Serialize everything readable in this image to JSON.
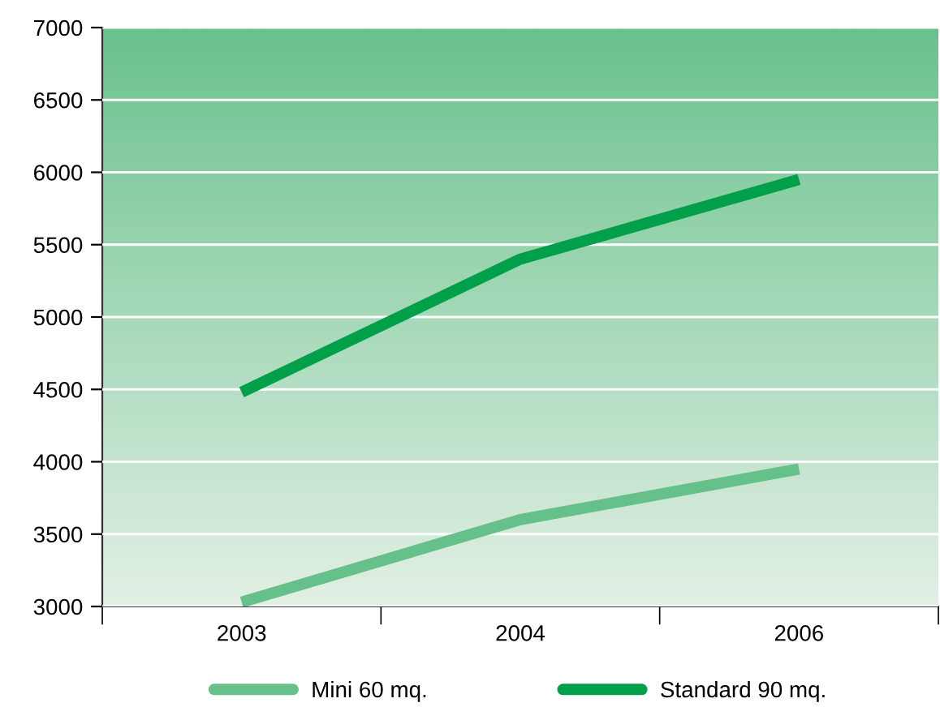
{
  "chart_data": {
    "type": "line",
    "categories": [
      "2003",
      "2004",
      "2006"
    ],
    "series": [
      {
        "name": "Mini 60 mq.",
        "color": "#66c08a",
        "values": [
          3030,
          3600,
          3950
        ]
      },
      {
        "name": "Standard 90 mq.",
        "color": "#00a04a",
        "values": [
          4480,
          5400,
          5950
        ]
      }
    ],
    "ylim": [
      3000,
      7000
    ],
    "yticks": [
      3000,
      3500,
      4000,
      4500,
      5000,
      5500,
      6000,
      6500,
      7000
    ],
    "grid": "y",
    "legend": "bottom",
    "marker": "none",
    "line_style": "solid"
  }
}
